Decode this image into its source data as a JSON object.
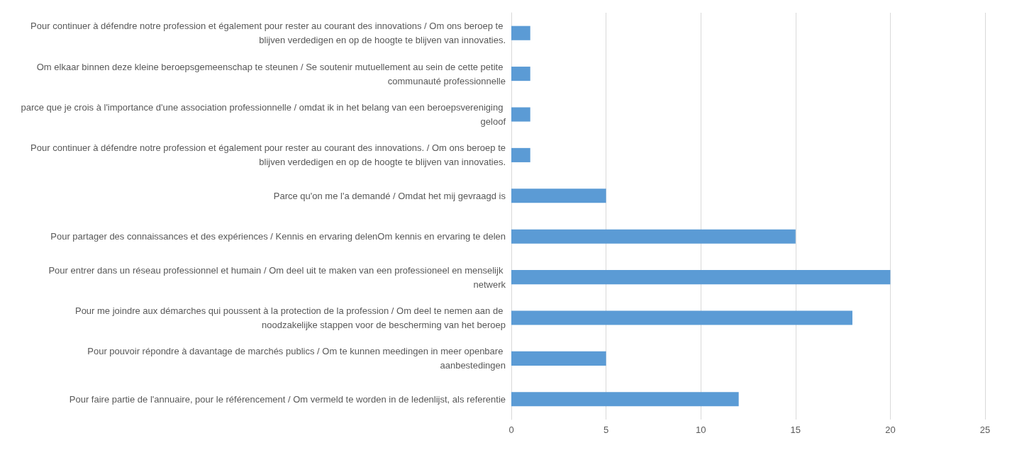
{
  "chart_data": {
    "type": "bar",
    "orientation": "horizontal",
    "categories": [
      "Pour continuer à défendre notre profession et également pour rester au courant des innovations / Om ons beroep te blijven verdedigen en op de hoogte te blijven van innovaties.",
      "Om elkaar binnen deze kleine beroepsgemeenschap te steunen / Se soutenir mutuellement au sein de cette petite communauté professionnelle",
      "parce que je crois à l'importance d'une association professionnelle / omdat ik in het belang van een beroepsvereniging geloof",
      "Pour continuer à défendre notre profession et également pour rester au courant des innovations. / Om ons beroep te blijven verdedigen en op de hoogte te blijven van innovaties.",
      "Parce qu'on me l'a demandé / Omdat het mij gevraagd is",
      "Pour partager des connaissances et des expériences / Kennis en ervaring delenOm kennis en ervaring te delen",
      "Pour entrer dans un réseau professionnel et humain / Om deel uit te maken van een professioneel en menselijk netwerk",
      "Pour me joindre aux démarches qui poussent à la protection de la profession / Om deel te nemen aan de noodzakelijke stappen voor de bescherming van het beroep",
      "Pour pouvoir répondre à davantage de marchés publics / Om te kunnen meedingen in meer openbare aanbestedingen",
      "Pour faire partie de l'annuaire, pour le référencement / Om vermeld te worden in de ledenlijst, als referentie"
    ],
    "values": [
      1,
      1,
      1,
      1,
      5,
      15,
      20,
      18,
      5,
      12
    ],
    "color": "#5b9bd5",
    "xlim": [
      0,
      25
    ],
    "xticks": [
      0,
      5,
      10,
      15,
      20,
      25
    ],
    "grid": "x"
  }
}
